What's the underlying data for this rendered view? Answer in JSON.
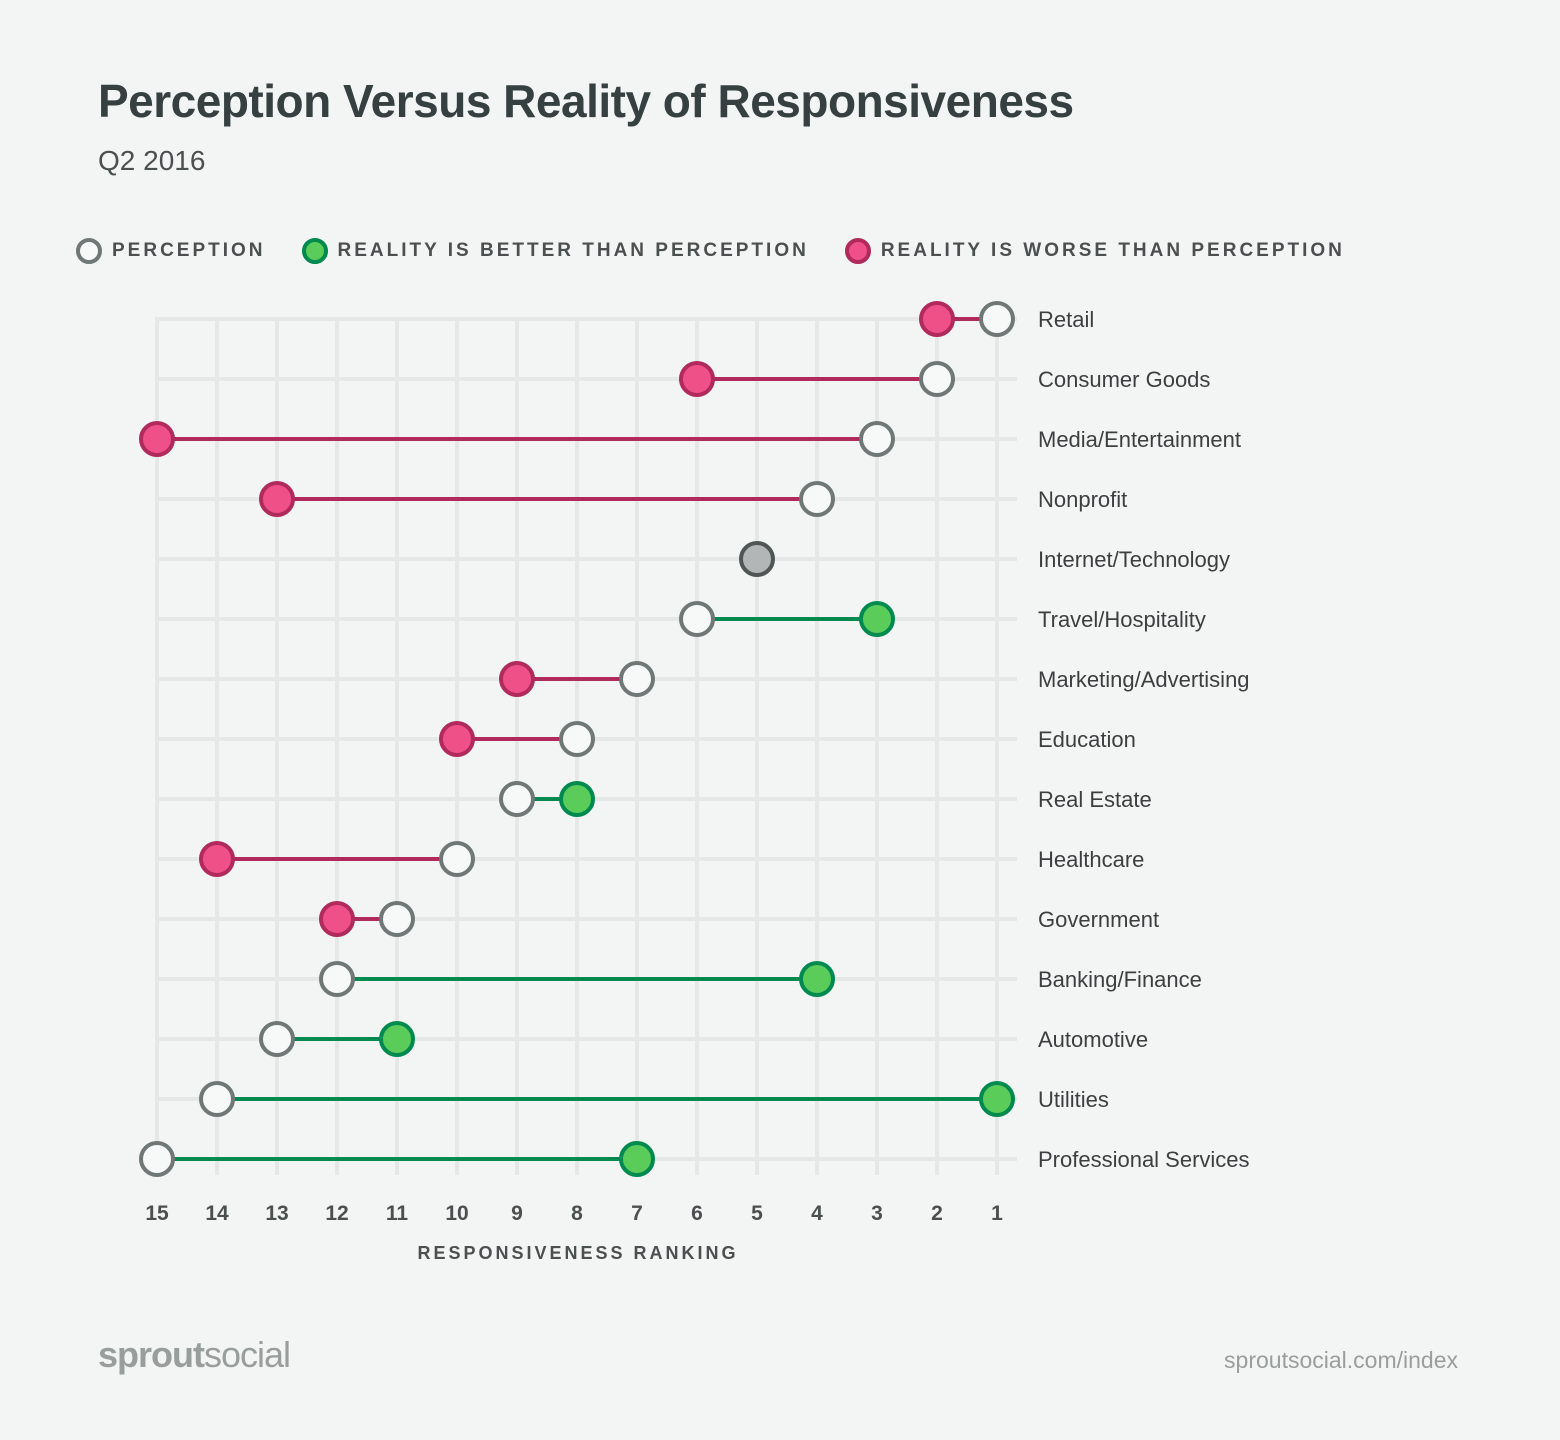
{
  "header": {
    "title": "Perception Versus Reality of Responsiveness",
    "subtitle": "Q2 2016"
  },
  "legend": [
    {
      "label": "PERCEPTION",
      "kind": "perception"
    },
    {
      "label": "REALITY IS BETTER THAN PERCEPTION",
      "kind": "better"
    },
    {
      "label": "REALITY IS WORSE THAN PERCEPTION",
      "kind": "worse"
    }
  ],
  "colors": {
    "background": "#f3f5f4",
    "grid": "#e6e8e7",
    "perception_stroke": "#6f7877",
    "perception_fill": "#f7f9f8",
    "better_fill": "#5acc5a",
    "better_stroke": "#008a50",
    "worse_fill": "#ef5087",
    "worse_stroke": "#b02a5c",
    "same_fill": "#b3b6b6",
    "same_stroke": "#4f5655"
  },
  "chart_data": {
    "type": "dumbbell",
    "title": "Perception Versus Reality of Responsiveness",
    "subtitle": "Q2 2016",
    "xlabel": "RESPONSIVENESS RANKING",
    "xlim": [
      15,
      1
    ],
    "xticks": [
      15,
      14,
      13,
      12,
      11,
      10,
      9,
      8,
      7,
      6,
      5,
      4,
      3,
      2,
      1
    ],
    "grid": true,
    "legend_position": "top",
    "categories": [
      "Retail",
      "Consumer Goods",
      "Media/Entertainment",
      "Nonprofit",
      "Internet/Technology",
      "Travel/Hospitality",
      "Marketing/Advertising",
      "Education",
      "Real Estate",
      "Healthcare",
      "Government",
      "Banking/Finance",
      "Automotive",
      "Utilities",
      "Professional Services"
    ],
    "series": [
      {
        "name": "PERCEPTION",
        "values": [
          1,
          2,
          3,
          4,
          5,
          6,
          7,
          8,
          9,
          10,
          11,
          12,
          13,
          14,
          15
        ]
      },
      {
        "name": "REALITY",
        "values": [
          2,
          6,
          15,
          13,
          5,
          3,
          9,
          10,
          8,
          14,
          12,
          4,
          11,
          1,
          7
        ]
      }
    ]
  },
  "footer": {
    "logo_bold": "sprout",
    "logo_light": "social",
    "url": "sproutsocial.com/index"
  }
}
